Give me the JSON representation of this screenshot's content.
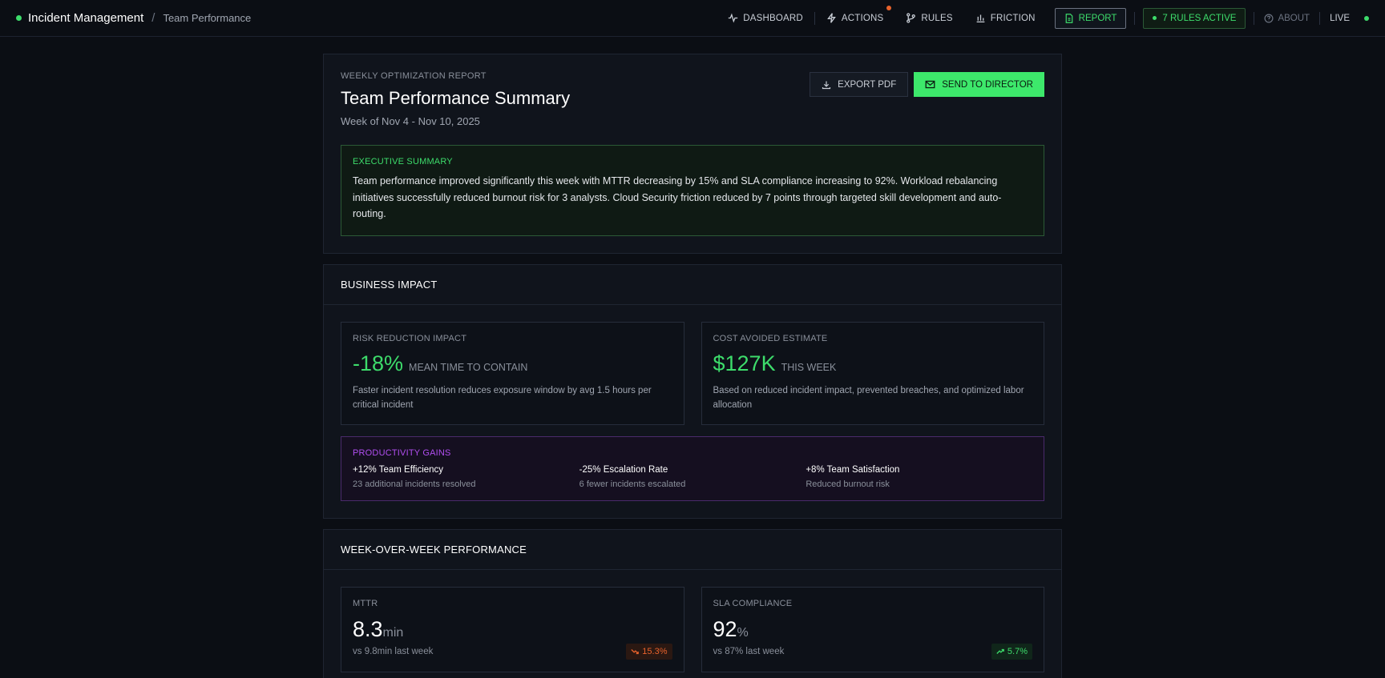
{
  "nav": {
    "title": "Incident Management",
    "separator": "/",
    "subtitle": "Team Performance",
    "items": [
      {
        "label": "DASHBOARD",
        "icon": "pulse-icon"
      },
      {
        "label": "ACTIONS",
        "icon": "bolt-icon",
        "notification": true
      },
      {
        "label": "RULES",
        "icon": "branch-icon"
      },
      {
        "label": "FRICTION",
        "icon": "bar-chart-icon"
      }
    ],
    "report_label": "REPORT",
    "rules_active": "7 RULES ACTIVE",
    "about": "ABOUT",
    "live": "LIVE",
    "accent": "#3ddc6b",
    "notification_color": "#e8622c"
  },
  "report": {
    "eyebrow": "WEEKLY OPTIMIZATION REPORT",
    "title": "Team Performance Summary",
    "week": "Week of Nov 4 - Nov 10, 2025",
    "export_label": "EXPORT PDF",
    "send_label": "SEND TO DIRECTOR",
    "exec_label": "EXECUTIVE SUMMARY",
    "exec_text": "Team performance improved significantly this week with MTTR decreasing by 15% and SLA compliance increasing to 92%. Workload rebalancing initiatives successfully reduced burnout risk for 3 analysts. Cloud Security friction reduced by 7 points through targeted skill development and auto-routing."
  },
  "business_impact": {
    "heading": "BUSINESS IMPACT",
    "risk": {
      "label": "RISK REDUCTION IMPACT",
      "value": "-18%",
      "unit": "MEAN TIME TO CONTAIN",
      "desc": "Faster incident resolution reduces exposure window by avg 1.5 hours per critical incident"
    },
    "cost": {
      "label": "COST AVOIDED ESTIMATE",
      "value": "$127K",
      "unit": "THIS WEEK",
      "desc": "Based on reduced incident impact, prevented breaches, and optimized labor allocation"
    },
    "productivity": {
      "label": "PRODUCTIVITY GAINS",
      "items": [
        {
          "title": "+12% Team Efficiency",
          "sub": "23 additional incidents resolved"
        },
        {
          "title": "-25% Escalation Rate",
          "sub": "6 fewer incidents escalated"
        },
        {
          "title": "+8% Team Satisfaction",
          "sub": "Reduced burnout risk"
        }
      ]
    }
  },
  "wow": {
    "heading": "WEEK-OVER-WEEK PERFORMANCE",
    "mttr": {
      "label": "MTTR",
      "value": "8.3",
      "unit": "min",
      "vs": "vs 9.8min last week",
      "change": "15.3%",
      "direction": "down"
    },
    "sla": {
      "label": "SLA COMPLIANCE",
      "value": "92",
      "unit": "%",
      "vs": "vs 87% last week",
      "change": "5.7%",
      "direction": "up"
    }
  }
}
